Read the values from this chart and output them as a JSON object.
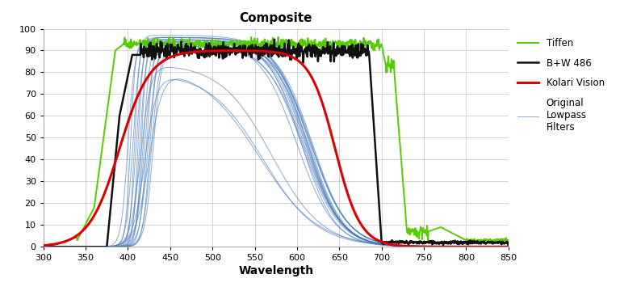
{
  "title": "Composite",
  "xlabel": "Wavelength",
  "xlim": [
    300,
    850
  ],
  "ylim": [
    0,
    100
  ],
  "xticks": [
    300,
    350,
    400,
    450,
    500,
    550,
    600,
    650,
    700,
    750,
    800,
    850
  ],
  "yticks": [
    0,
    10,
    20,
    30,
    40,
    50,
    60,
    70,
    80,
    90,
    100
  ],
  "title_fontsize": 11,
  "tiffen_color": "#55cc00",
  "bw_color": "#111111",
  "kolari_color": "#dd0000",
  "lpf_color": "#4477bb",
  "background_color": "#ffffff",
  "grid_color": "#cccccc",
  "tick_fontsize": 8,
  "xlabel_fontsize": 10
}
